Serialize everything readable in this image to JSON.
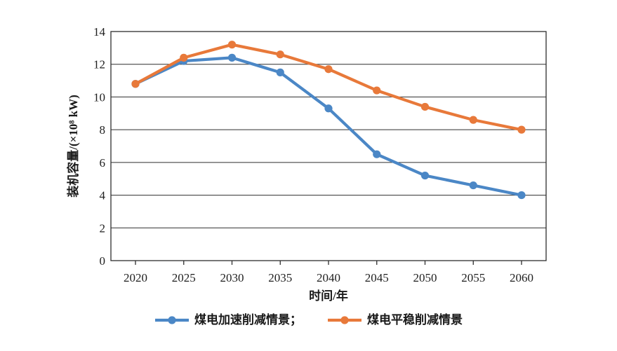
{
  "figure": {
    "background": "#ffffff",
    "axis_color": "#2e2e2e",
    "text_color": "#1f1f1f"
  },
  "chart_data": {
    "type": "line",
    "title": "",
    "xlabel": "时间/年",
    "ylabel": "装机容量/(×10⁸ kW)",
    "categories": [
      "2020",
      "2025",
      "2030",
      "2035",
      "2040",
      "2045",
      "2050",
      "2055",
      "2060"
    ],
    "yticks": [
      0,
      2,
      4,
      6,
      8,
      10,
      12,
      14
    ],
    "ylim": [
      0,
      14
    ],
    "grid": "horizontal",
    "legend_position": "bottom",
    "series": [
      {
        "id": "accelerated",
        "name": "煤电加速削减情景",
        "legend_label": "煤电加速削减情景；",
        "color": "#4B87C6",
        "marker": "circle",
        "values": [
          10.8,
          12.2,
          12.4,
          11.5,
          9.3,
          6.5,
          5.2,
          4.6,
          4.0
        ]
      },
      {
        "id": "steady",
        "name": "煤电平稳削减情景",
        "legend_label": "煤电平稳削减情景",
        "color": "#E8793A",
        "marker": "circle",
        "values": [
          10.8,
          12.4,
          13.2,
          12.6,
          11.7,
          10.4,
          9.4,
          8.6,
          8.0
        ]
      }
    ]
  }
}
